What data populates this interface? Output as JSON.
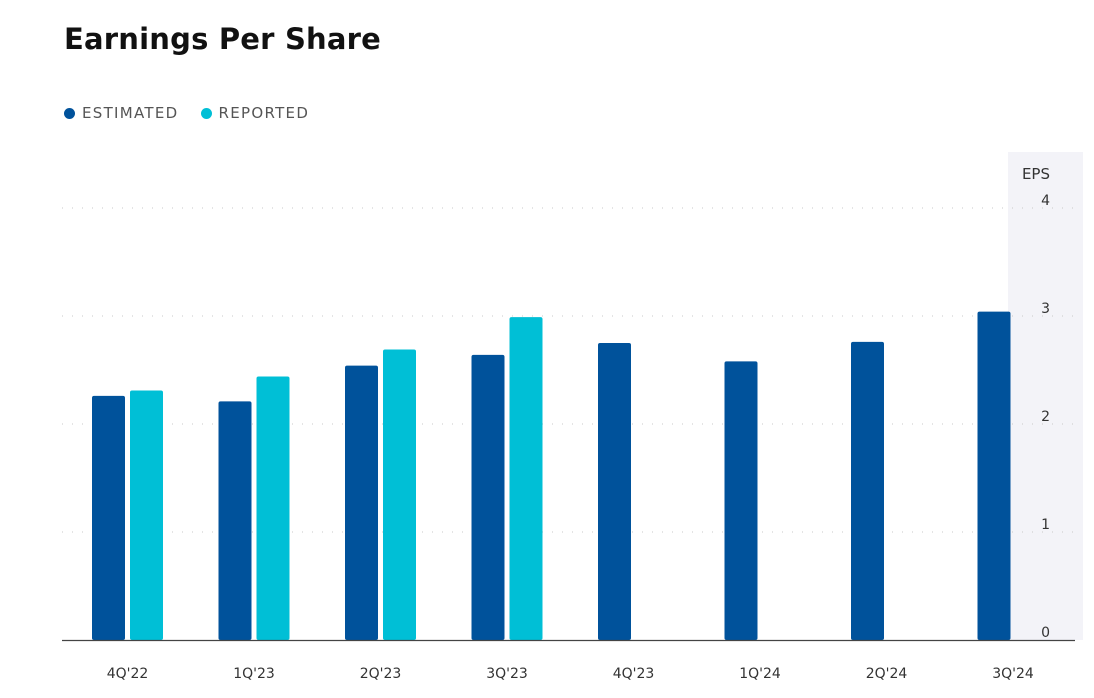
{
  "title": "Earnings Per Share",
  "legend": [
    {
      "label": "ESTIMATED",
      "color": "#00529b"
    },
    {
      "label": "REPORTED",
      "color": "#00bfd6"
    }
  ],
  "chart_data": {
    "type": "bar",
    "title": "Earnings Per Share",
    "categories": [
      "4Q'22",
      "1Q'23",
      "2Q'23",
      "3Q'23",
      "4Q'23",
      "1Q'24",
      "2Q'24",
      "3Q'24"
    ],
    "series": [
      {
        "name": "ESTIMATED",
        "color": "#00529b",
        "values": [
          2.26,
          2.21,
          2.54,
          2.64,
          2.75,
          2.58,
          2.76,
          3.04
        ]
      },
      {
        "name": "REPORTED",
        "color": "#00bfd6",
        "values": [
          2.31,
          2.44,
          2.69,
          2.99,
          null,
          null,
          null,
          null
        ]
      }
    ],
    "ylabel": "EPS",
    "ylim": [
      0,
      4
    ],
    "yticks": [
      0,
      1,
      2,
      3,
      4
    ],
    "grid": true,
    "legend_position": "top-left"
  }
}
